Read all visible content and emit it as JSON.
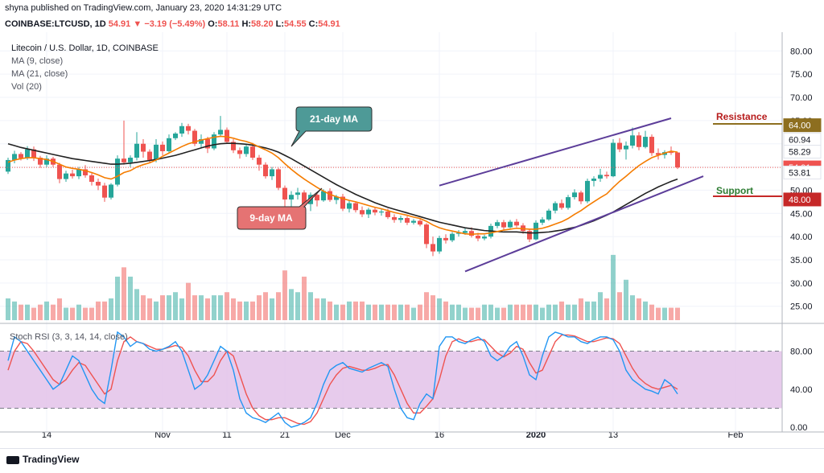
{
  "header": {
    "publisher": "shyna published on TradingView.com, January 23, 2020 14:31:29 UTC"
  },
  "symbol_bar": {
    "symbol": "COINBASE:LTCUSD, 1D",
    "last": "54.91",
    "change": "−3.19 (−5.49%)",
    "o_label": "O:",
    "o": "58.11",
    "h_label": "H:",
    "h": "58.20",
    "l_label": "L:",
    "l": "54.55",
    "c_label": "C:",
    "c": "54.91"
  },
  "legend": {
    "title": "Litecoin / U.S. Dollar, 1D, COINBASE",
    "ma9": "MA (9, close)",
    "ma21": "MA (21, close)",
    "vol": "Vol (20)"
  },
  "annotations": {
    "ma21_callout": "21-day MA",
    "ma9_callout": "9-day MA",
    "resistance": "Resistance",
    "support": "Support"
  },
  "price_badges": [
    {
      "value": "64.00",
      "color": "#8d6e1f",
      "text_color": "#ffffff"
    },
    {
      "value": "60.94",
      "color": "#ffffff",
      "text_color": "#131722"
    },
    {
      "value": "58.29",
      "color": "#ffffff",
      "text_color": "#131722"
    },
    {
      "value": "54.91",
      "color": "#ef5350",
      "text_color": "#ffffff"
    },
    {
      "value": "53.81",
      "color": "#ffffff",
      "text_color": "#131722"
    },
    {
      "value": "48.00",
      "color": "#c62828",
      "text_color": "#ffffff"
    }
  ],
  "stoch": {
    "label": "Stoch RSI (3, 3, 14, 14, close)"
  },
  "bottom": {
    "brand": "TradingView"
  },
  "colors": {
    "up": "#26a69a",
    "down": "#ef5350",
    "ma9": "#f57c00",
    "ma21": "#212121",
    "trend": "#5c3d99",
    "stoch_k": "#2196f3",
    "stoch_d": "#ef5350",
    "stoch_band": "#e1bee7",
    "callout": "#4e9a97",
    "callout9": "#e57373"
  },
  "chart_data": {
    "type": "candlestick",
    "title": "Litecoin / U.S. Dollar, 1D, COINBASE",
    "price_axis": {
      "ticks": [
        25,
        30,
        35,
        40,
        45,
        50,
        55,
        60,
        65,
        70,
        75,
        80
      ],
      "labels": [
        "25.00",
        "30.00",
        "35.00",
        "40.00",
        "45.00",
        "50.00",
        "55.00",
        "60.00",
        "65.00",
        "70.00",
        "75.00",
        "80.00"
      ],
      "range": [
        22,
        83
      ]
    },
    "x_axis_labels": [
      {
        "label": "14",
        "index": 6
      },
      {
        "label": "Nov",
        "index": 24
      },
      {
        "label": "11",
        "index": 34
      },
      {
        "label": "21",
        "index": 43
      },
      {
        "label": "Dec",
        "index": 52
      },
      {
        "label": "16",
        "index": 67
      },
      {
        "label": "2020",
        "index": 82
      },
      {
        "label": "13",
        "index": 94
      },
      {
        "label": "Feb",
        "index": 113
      }
    ],
    "candles": [
      [
        54.0,
        57.0,
        53.5,
        56.5
      ],
      [
        56.5,
        58.5,
        55.8,
        57.8
      ],
      [
        57.8,
        58.2,
        56.4,
        56.9
      ],
      [
        56.9,
        59.5,
        56.5,
        58.8
      ],
      [
        58.8,
        59.4,
        56.3,
        57.0
      ],
      [
        57.0,
        57.4,
        54.8,
        55.5
      ],
      [
        55.5,
        57.5,
        55.0,
        56.8
      ],
      [
        56.8,
        57.2,
        55.0,
        55.5
      ],
      [
        55.5,
        55.9,
        51.5,
        52.4
      ],
      [
        52.4,
        54.2,
        51.8,
        53.6
      ],
      [
        53.6,
        54.4,
        52.5,
        53.0
      ],
      [
        53.0,
        55.0,
        52.4,
        54.5
      ],
      [
        54.5,
        55.4,
        52.7,
        53.2
      ],
      [
        53.2,
        53.7,
        51.0,
        51.8
      ],
      [
        51.8,
        52.5,
        50.0,
        51.0
      ],
      [
        51.0,
        51.6,
        47.5,
        48.4
      ],
      [
        48.4,
        51.5,
        48.0,
        51.2
      ],
      [
        51.2,
        57.5,
        50.8,
        56.8
      ],
      [
        56.8,
        65.0,
        55.5,
        56.0
      ],
      [
        56.0,
        57.5,
        55.0,
        57.0
      ],
      [
        57.0,
        62.5,
        56.4,
        60.0
      ],
      [
        60.0,
        61.0,
        57.0,
        58.3
      ],
      [
        58.3,
        58.8,
        55.8,
        56.5
      ],
      [
        56.5,
        61.0,
        56.0,
        59.8
      ],
      [
        59.8,
        60.5,
        57.5,
        58.4
      ],
      [
        58.4,
        62.0,
        58.0,
        61.2
      ],
      [
        61.2,
        62.5,
        60.8,
        62.2
      ],
      [
        62.2,
        64.5,
        61.5,
        63.8
      ],
      [
        63.8,
        64.3,
        62.0,
        62.8
      ],
      [
        62.8,
        63.2,
        59.5,
        60.0
      ],
      [
        60.0,
        62.0,
        59.2,
        61.0
      ],
      [
        61.0,
        61.5,
        58.0,
        59.0
      ],
      [
        59.0,
        62.5,
        58.6,
        62.0
      ],
      [
        62.0,
        66.0,
        61.5,
        63.0
      ],
      [
        63.0,
        63.5,
        60.0,
        60.4
      ],
      [
        60.4,
        61.0,
        58.0,
        58.6
      ],
      [
        58.6,
        59.2,
        56.8,
        57.8
      ],
      [
        57.8,
        60.0,
        57.2,
        59.4
      ],
      [
        59.4,
        60.2,
        56.5,
        57.0
      ],
      [
        57.0,
        57.6,
        54.2,
        55.5
      ],
      [
        55.5,
        56.0,
        52.5,
        53.0
      ],
      [
        53.0,
        55.0,
        52.2,
        54.5
      ],
      [
        54.5,
        54.8,
        50.0,
        50.5
      ],
      [
        50.5,
        51.0,
        45.5,
        48.0
      ],
      [
        48.0,
        49.8,
        46.5,
        49.0
      ],
      [
        49.0,
        50.5,
        48.0,
        49.5
      ],
      [
        49.5,
        50.0,
        42.5,
        47.0
      ],
      [
        47.0,
        49.5,
        45.5,
        49.0
      ],
      [
        49.0,
        49.5,
        46.5,
        47.8
      ],
      [
        47.8,
        50.2,
        47.5,
        49.8
      ],
      [
        49.8,
        50.4,
        47.5,
        47.9
      ],
      [
        47.9,
        49.0,
        47.0,
        48.6
      ],
      [
        48.6,
        49.2,
        45.5,
        46.0
      ],
      [
        46.0,
        47.8,
        45.2,
        47.2
      ],
      [
        47.2,
        47.6,
        45.2,
        45.7
      ],
      [
        45.7,
        46.5,
        44.2,
        44.8
      ],
      [
        44.8,
        46.2,
        44.0,
        45.8
      ],
      [
        45.8,
        46.3,
        44.6,
        45.2
      ],
      [
        45.2,
        46.0,
        44.5,
        45.4
      ],
      [
        45.4,
        46.0,
        43.8,
        44.2
      ],
      [
        44.2,
        44.8,
        43.0,
        43.6
      ],
      [
        43.6,
        44.5,
        43.0,
        44.0
      ],
      [
        44.0,
        44.4,
        42.5,
        43.0
      ],
      [
        43.0,
        43.8,
        42.6,
        43.4
      ],
      [
        43.4,
        43.8,
        42.2,
        42.6
      ],
      [
        42.6,
        42.9,
        37.5,
        38.4
      ],
      [
        38.4,
        40.0,
        35.8,
        36.8
      ],
      [
        36.8,
        40.2,
        36.3,
        39.7
      ],
      [
        39.7,
        40.5,
        38.5,
        39.2
      ],
      [
        39.2,
        41.0,
        38.8,
        40.6
      ],
      [
        40.6,
        41.4,
        40.0,
        40.8
      ],
      [
        40.8,
        41.8,
        40.4,
        41.2
      ],
      [
        41.2,
        42.0,
        39.8,
        40.2
      ],
      [
        40.2,
        40.8,
        39.0,
        39.6
      ],
      [
        39.6,
        40.4,
        39.2,
        40.0
      ],
      [
        40.0,
        42.8,
        39.6,
        42.3
      ],
      [
        42.3,
        43.6,
        41.8,
        43.1
      ],
      [
        43.1,
        43.6,
        41.5,
        42.0
      ],
      [
        42.0,
        43.6,
        41.8,
        43.2
      ],
      [
        43.2,
        43.8,
        42.0,
        42.4
      ],
      [
        42.4,
        42.9,
        40.6,
        41.2
      ],
      [
        41.2,
        41.7,
        38.8,
        39.4
      ],
      [
        39.4,
        43.5,
        39.2,
        43.0
      ],
      [
        43.0,
        44.2,
        42.5,
        43.7
      ],
      [
        43.7,
        46.0,
        43.4,
        45.6
      ],
      [
        45.6,
        47.6,
        45.0,
        47.2
      ],
      [
        47.2,
        48.0,
        45.8,
        46.2
      ],
      [
        46.2,
        49.0,
        45.8,
        48.5
      ],
      [
        48.5,
        50.2,
        48.0,
        49.5
      ],
      [
        49.5,
        49.9,
        47.0,
        47.6
      ],
      [
        47.6,
        52.5,
        47.2,
        52.0
      ],
      [
        52.0,
        53.0,
        50.8,
        52.5
      ],
      [
        52.5,
        54.6,
        51.8,
        53.3
      ],
      [
        53.3,
        54.0,
        52.5,
        53.0
      ],
      [
        53.0,
        61.0,
        52.8,
        60.2
      ],
      [
        60.2,
        61.2,
        58.2,
        58.8
      ],
      [
        58.8,
        60.5,
        56.6,
        59.6
      ],
      [
        59.6,
        63.5,
        59.0,
        61.8
      ],
      [
        61.8,
        62.5,
        58.6,
        59.3
      ],
      [
        59.3,
        62.8,
        59.0,
        61.5
      ],
      [
        61.5,
        62.0,
        57.4,
        58.0
      ],
      [
        58.0,
        59.0,
        56.6,
        57.6
      ],
      [
        57.6,
        58.6,
        56.8,
        58.2
      ],
      [
        58.2,
        59.4,
        57.6,
        58.1
      ],
      [
        58.11,
        58.2,
        54.55,
        54.91
      ]
    ],
    "volume": [
      7,
      6,
      5,
      5,
      4,
      5,
      6,
      5,
      7,
      4,
      4,
      5,
      4,
      4,
      6,
      6,
      7,
      14,
      17,
      14,
      10,
      8,
      7,
      6,
      8,
      8,
      9,
      7,
      12,
      8,
      8,
      7,
      8,
      8,
      9,
      7,
      6,
      6,
      6,
      8,
      9,
      7,
      9,
      16,
      10,
      9,
      14,
      9,
      7,
      7,
      6,
      5,
      5,
      6,
      6,
      6,
      5,
      5,
      5,
      5,
      5,
      5,
      5,
      4,
      5,
      9,
      8,
      7,
      6,
      5,
      5,
      4,
      4,
      4,
      5,
      5,
      4,
      4,
      5,
      5,
      5,
      5,
      5,
      4,
      5,
      5,
      6,
      5,
      5,
      7,
      6,
      6,
      9,
      7,
      21,
      9,
      13,
      8,
      7,
      6,
      5,
      4,
      4,
      4,
      4
    ],
    "ma9": [
      56.0,
      56.5,
      56.8,
      57.0,
      57.0,
      56.8,
      56.6,
      56.2,
      55.6,
      55.0,
      54.7,
      54.5,
      54.2,
      53.8,
      53.3,
      52.7,
      52.4,
      53.0,
      53.8,
      54.2,
      55.0,
      55.5,
      55.9,
      56.5,
      57.3,
      58.0,
      58.7,
      59.4,
      60.0,
      60.4,
      60.8,
      61.1,
      61.4,
      61.6,
      61.5,
      61.2,
      60.8,
      60.5,
      60.0,
      59.3,
      58.7,
      58.0,
      57.0,
      55.7,
      54.5,
      53.4,
      52.4,
      51.5,
      50.6,
      49.8,
      49.1,
      48.6,
      48.2,
      47.8,
      47.5,
      47.1,
      46.7,
      46.3,
      46.0,
      45.6,
      45.2,
      44.9,
      44.6,
      44.2,
      43.9,
      43.3,
      42.5,
      41.9,
      41.5,
      41.2,
      40.9,
      40.6,
      40.5,
      40.6,
      40.6,
      40.8,
      41.1,
      41.4,
      41.6,
      41.8,
      41.7,
      41.6,
      41.6,
      41.8,
      42.2,
      42.7,
      43.2,
      43.9,
      44.8,
      45.6,
      46.6,
      47.5,
      48.4,
      49.2,
      50.6,
      51.9,
      53.0,
      54.2,
      55.3,
      56.2,
      57.0,
      57.5,
      58.0,
      58.4,
      58.2
    ],
    "ma21": [
      60.0,
      59.6,
      59.2,
      58.9,
      58.6,
      58.3,
      58.0,
      57.7,
      57.4,
      57.1,
      56.8,
      56.6,
      56.4,
      56.2,
      56.0,
      55.8,
      55.6,
      55.6,
      55.7,
      55.8,
      56.0,
      56.2,
      56.4,
      56.6,
      56.9,
      57.2,
      57.5,
      57.9,
      58.3,
      58.7,
      59.1,
      59.5,
      59.8,
      60.0,
      60.1,
      60.1,
      60.0,
      59.9,
      59.7,
      59.4,
      59.1,
      58.7,
      58.2,
      57.5,
      56.8,
      56.0,
      55.2,
      54.4,
      53.6,
      52.8,
      52.0,
      51.2,
      50.5,
      49.8,
      49.1,
      48.5,
      47.9,
      47.3,
      46.8,
      46.3,
      45.9,
      45.5,
      45.1,
      44.7,
      44.3,
      43.9,
      43.5,
      43.1,
      42.8,
      42.5,
      42.2,
      41.9,
      41.7,
      41.5,
      41.3,
      41.2,
      41.1,
      41.0,
      41.0,
      41.0,
      40.9,
      40.8,
      40.8,
      40.9,
      41.0,
      41.2,
      41.4,
      41.7,
      42.0,
      42.4,
      42.9,
      43.4,
      44.0,
      44.6,
      45.3,
      46.1,
      46.9,
      47.7,
      48.5,
      49.3,
      50.0,
      50.7,
      51.3,
      51.9,
      52.4
    ],
    "trendlines": [
      {
        "name": "upper channel",
        "from": [
          67,
          51
        ],
        "to": [
          103,
          65.5
        ]
      },
      {
        "name": "lower channel",
        "from": [
          71,
          32.5
        ],
        "to": [
          108,
          53
        ]
      }
    ],
    "levels": [
      {
        "name": "Resistance",
        "value": 64.0
      },
      {
        "name": "Support",
        "value": 48.0
      }
    ],
    "stoch_rsi": {
      "range": [
        -5,
        105
      ],
      "ticks": [
        0,
        40,
        80
      ],
      "tick_labels": [
        "0.00",
        "40.00",
        "80.00"
      ],
      "band": [
        20,
        80
      ],
      "k": [
        70,
        95,
        90,
        80,
        70,
        60,
        50,
        40,
        45,
        60,
        75,
        70,
        55,
        40,
        30,
        25,
        60,
        100,
        95,
        85,
        90,
        88,
        82,
        80,
        82,
        85,
        90,
        80,
        60,
        40,
        45,
        55,
        70,
        85,
        80,
        60,
        30,
        15,
        10,
        8,
        5,
        10,
        15,
        5,
        0,
        2,
        5,
        10,
        25,
        45,
        60,
        65,
        68,
        62,
        60,
        58,
        62,
        65,
        68,
        64,
        40,
        20,
        10,
        8,
        25,
        35,
        30,
        85,
        95,
        95,
        90,
        88,
        92,
        95,
        90,
        75,
        70,
        75,
        85,
        90,
        75,
        55,
        50,
        75,
        95,
        100,
        98,
        95,
        95,
        90,
        88,
        92,
        95,
        95,
        92,
        80,
        60,
        50,
        45,
        40,
        38,
        35,
        50,
        45,
        35
      ],
      "d": [
        60,
        80,
        90,
        88,
        80,
        70,
        60,
        50,
        45,
        50,
        60,
        68,
        65,
        55,
        45,
        35,
        40,
        70,
        90,
        95,
        90,
        88,
        85,
        82,
        82,
        84,
        86,
        84,
        75,
        60,
        48,
        48,
        55,
        70,
        80,
        75,
        55,
        35,
        20,
        12,
        8,
        8,
        10,
        10,
        7,
        4,
        3,
        6,
        15,
        30,
        45,
        55,
        62,
        64,
        62,
        60,
        60,
        62,
        65,
        66,
        55,
        40,
        25,
        15,
        15,
        22,
        30,
        50,
        75,
        90,
        93,
        90,
        90,
        92,
        92,
        85,
        78,
        74,
        78,
        85,
        82,
        68,
        57,
        60,
        75,
        90,
        97,
        97,
        96,
        93,
        90,
        90,
        92,
        94,
        93,
        88,
        75,
        62,
        52,
        46,
        42,
        40,
        42,
        44,
        40
      ]
    }
  }
}
